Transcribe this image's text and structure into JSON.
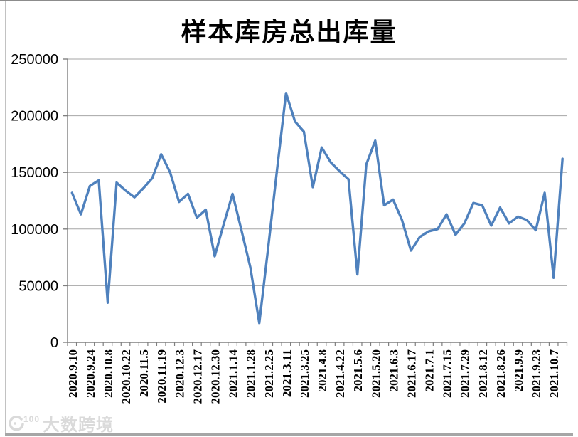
{
  "chart_data": {
    "type": "line",
    "title": "样本库房总出库量",
    "series_name": "样本库房总出库量",
    "x_tick_labels": [
      "2020.9.10",
      "2020.9.24",
      "2020.10.8",
      "2020.10.22",
      "2020.11.5",
      "2020.11.19",
      "2020.12.3",
      "2020.12.17",
      "2020.12.30",
      "2021.1.14",
      "2021.1.28",
      "2021.2.25",
      "2021.3.11",
      "2021.3.25",
      "2021.4.8",
      "2021.4.22",
      "2021.5.6",
      "2021.5.20",
      "2021.6.3",
      "2021.6.17",
      "2021.7.1",
      "2021.7.15",
      "2021.7.29",
      "2021.8.12",
      "2021.8.26",
      "2021.9.9",
      "2021.9.23",
      "2021.10.7"
    ],
    "label_every": 2,
    "values": [
      132000,
      113000,
      138000,
      143000,
      35000,
      141000,
      134000,
      128000,
      136000,
      145000,
      166000,
      150000,
      124000,
      131000,
      110000,
      117000,
      76000,
      104000,
      131000,
      99000,
      66000,
      17000,
      84000,
      153000,
      220000,
      195000,
      186000,
      137000,
      172000,
      159000,
      151000,
      144000,
      60000,
      157000,
      178000,
      121000,
      126000,
      108000,
      81000,
      93000,
      98000,
      100000,
      113000,
      95000,
      105000,
      123000,
      121000,
      103000,
      119000,
      105000,
      111000,
      108000,
      99000,
      132000,
      57000,
      162000
    ],
    "ylim": [
      0,
      250000
    ],
    "y_ticks": [
      0,
      50000,
      100000,
      150000,
      200000,
      250000
    ],
    "grid": "horizontal",
    "legend": "none",
    "line_color": "#4F81BD",
    "gridline_color": "#A6A6A6",
    "axis_color": "#7F7F7F",
    "text_color": "#000000"
  },
  "watermark": {
    "logo_text": "100",
    "text": "大数跨境"
  }
}
